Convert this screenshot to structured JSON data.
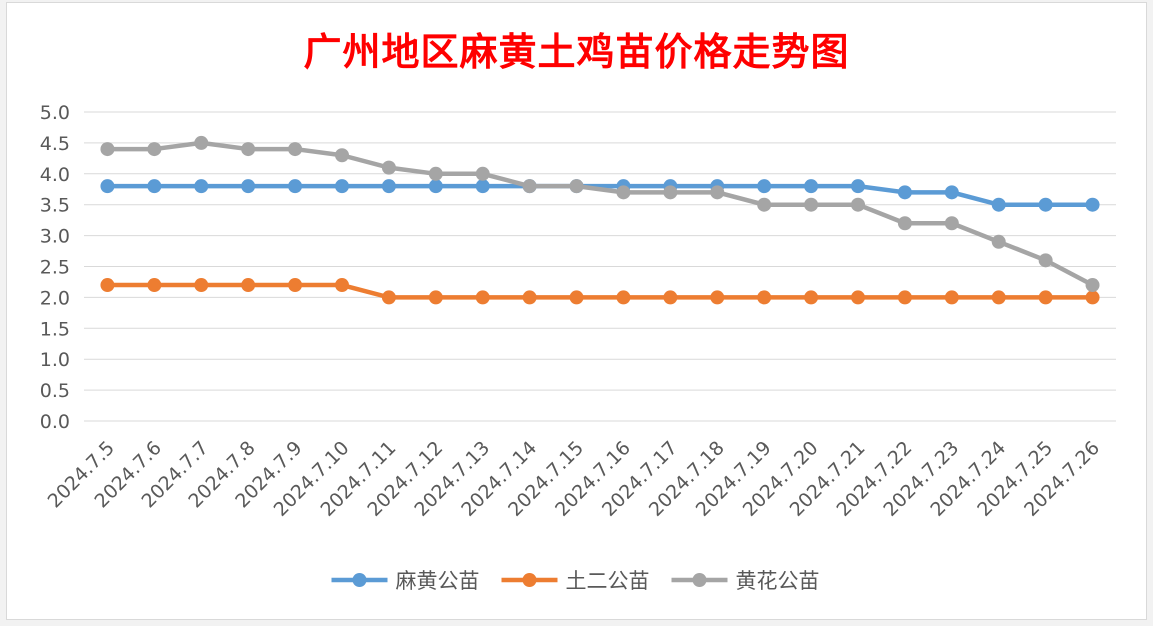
{
  "chart_data": {
    "type": "line",
    "title": "广州地区麻黄土鸡苗价格走势图",
    "xlabel": "",
    "ylabel": "",
    "ylim": [
      0,
      5
    ],
    "yticks": [
      "0.0",
      "0.5",
      "1.0",
      "1.5",
      "2.0",
      "2.5",
      "3.0",
      "3.5",
      "4.0",
      "4.5",
      "5.0"
    ],
    "grid": true,
    "legend": "bottom",
    "categories": [
      "2024.7.5",
      "2024.7.6",
      "2024.7.7",
      "2024.7.8",
      "2024.7.9",
      "2024.7.10",
      "2024.7.11",
      "2024.7.12",
      "2024.7.13",
      "2024.7.14",
      "2024.7.15",
      "2024.7.16",
      "2024.7.17",
      "2024.7.18",
      "2024.7.19",
      "2024.7.20",
      "2024.7.21",
      "2024.7.22",
      "2024.7.23",
      "2024.7.24",
      "2024.7.25",
      "2024.7.26"
    ],
    "series": [
      {
        "name": "麻黄公苗",
        "color": "#5b9bd5",
        "values": [
          3.8,
          3.8,
          3.8,
          3.8,
          3.8,
          3.8,
          3.8,
          3.8,
          3.8,
          3.8,
          3.8,
          3.8,
          3.8,
          3.8,
          3.8,
          3.8,
          3.8,
          3.7,
          3.7,
          3.5,
          3.5,
          3.5
        ]
      },
      {
        "name": "土二公苗",
        "color": "#ed7d31",
        "values": [
          2.2,
          2.2,
          2.2,
          2.2,
          2.2,
          2.2,
          2.0,
          2.0,
          2.0,
          2.0,
          2.0,
          2.0,
          2.0,
          2.0,
          2.0,
          2.0,
          2.0,
          2.0,
          2.0,
          2.0,
          2.0,
          2.0
        ]
      },
      {
        "name": "黄花公苗",
        "color": "#a5a5a5",
        "values": [
          4.4,
          4.4,
          4.5,
          4.4,
          4.4,
          4.3,
          4.1,
          4.0,
          4.0,
          3.8,
          3.8,
          3.7,
          3.7,
          3.7,
          3.5,
          3.5,
          3.5,
          3.2,
          3.2,
          2.9,
          2.6,
          2.2
        ]
      }
    ]
  }
}
